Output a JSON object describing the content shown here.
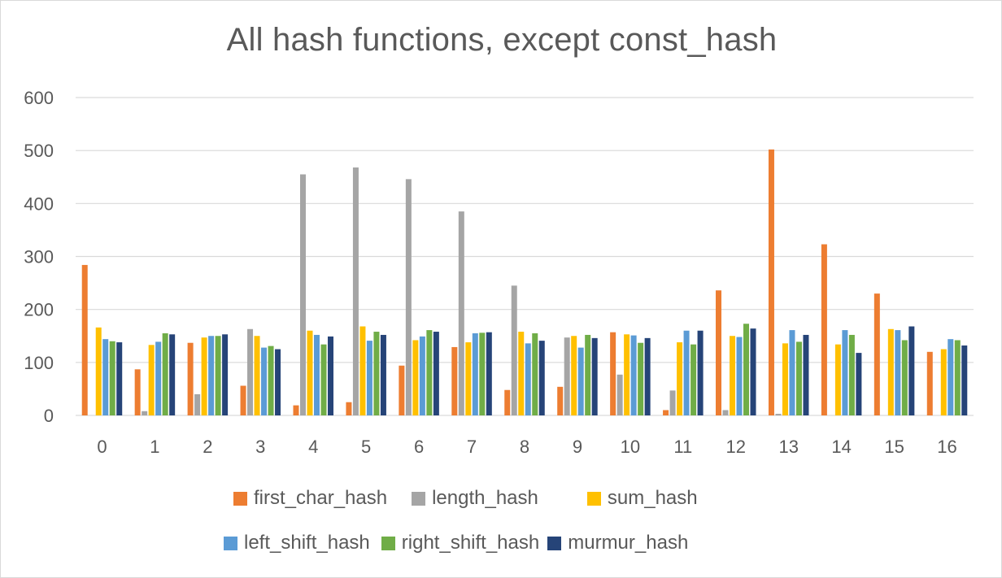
{
  "chart_data": {
    "type": "bar",
    "title": "All hash functions, except const_hash",
    "xlabel": "",
    "ylabel": "",
    "ylim": [
      0,
      600
    ],
    "yticks": [
      0,
      100,
      200,
      300,
      400,
      500,
      600
    ],
    "grid": true,
    "legend_position": "bottom",
    "categories": [
      "0",
      "1",
      "2",
      "3",
      "4",
      "5",
      "6",
      "7",
      "8",
      "9",
      "10",
      "11",
      "12",
      "13",
      "14",
      "15",
      "16"
    ],
    "series": [
      {
        "name": "first_char_hash",
        "color": "#ED7D31",
        "values": [
          284,
          87,
          137,
          56,
          19,
          25,
          94,
          129,
          48,
          54,
          157,
          10,
          236,
          502,
          323,
          230,
          120
        ]
      },
      {
        "name": "length_hash",
        "color": "#A5A5A5",
        "values": [
          0,
          8,
          40,
          163,
          455,
          468,
          446,
          385,
          245,
          147,
          77,
          47,
          10,
          3,
          0,
          0,
          0
        ]
      },
      {
        "name": "sum_hash",
        "color": "#FFC000",
        "values": [
          166,
          133,
          147,
          150,
          160,
          168,
          142,
          138,
          158,
          150,
          153,
          138,
          150,
          136,
          134,
          163,
          125
        ]
      },
      {
        "name": "left_shift_hash",
        "color": "#5B9BD5",
        "values": [
          144,
          139,
          150,
          128,
          152,
          141,
          149,
          155,
          136,
          128,
          151,
          160,
          148,
          161,
          161,
          161,
          144
        ]
      },
      {
        "name": "right_shift_hash",
        "color": "#70AD47",
        "values": [
          140,
          155,
          150,
          131,
          134,
          158,
          161,
          156,
          155,
          152,
          137,
          134,
          173,
          139,
          152,
          142,
          142
        ]
      },
      {
        "name": "murmur_hash",
        "color": "#264478",
        "values": [
          138,
          153,
          153,
          125,
          149,
          152,
          158,
          157,
          141,
          146,
          146,
          160,
          164,
          152,
          118,
          168,
          132
        ]
      }
    ]
  },
  "legend_rows": [
    [
      "first_char_hash",
      "length_hash",
      "sum_hash"
    ],
    [
      "left_shift_hash",
      "right_shift_hash",
      "murmur_hash"
    ]
  ],
  "colors": {
    "gridline": "#d9d9d9",
    "text": "#595959",
    "border": "#d9d9d9"
  }
}
